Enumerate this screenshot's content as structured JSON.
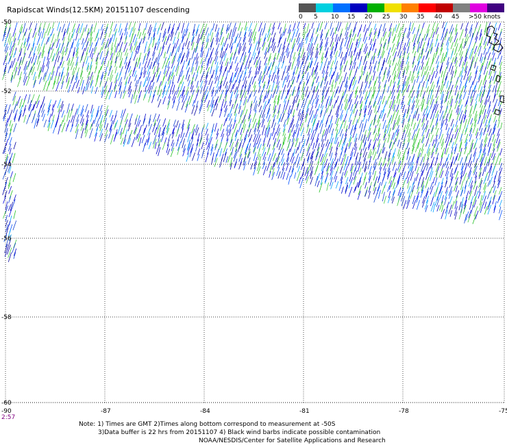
{
  "title": "Rapidscat Winds(12.5KM) 20151107 descending",
  "legend": {
    "labels": [
      "0",
      "5",
      "10",
      "15",
      "20",
      "25",
      "30",
      "35",
      "40",
      "45",
      ">50 knots"
    ],
    "colors": [
      "#555555",
      "#00d0e0",
      "#0070ff",
      "#0000c0",
      "#00b000",
      "#f0e000",
      "#ff8000",
      "#ff0000",
      "#c00000",
      "#808080",
      "#e000e0",
      "#400080"
    ]
  },
  "map": {
    "lon_ticks": [
      "-90",
      "-87",
      "-84",
      "-81",
      "-78",
      "-75"
    ],
    "lat_ticks": [
      "-50",
      "-52",
      "-54",
      "-56",
      "-58",
      "-60"
    ],
    "time_label": "2:57"
  },
  "notes": {
    "line1": "Note: 1) Times are GMT 2)Times along bottom correspond to measurement at -50S",
    "line2": "3)Data buffer is 22 hrs from 20151107 4) Black wind barbs indicate possible contamination",
    "line3": "NOAA/NESDIS/Center for Satellite Applications and Research"
  }
}
